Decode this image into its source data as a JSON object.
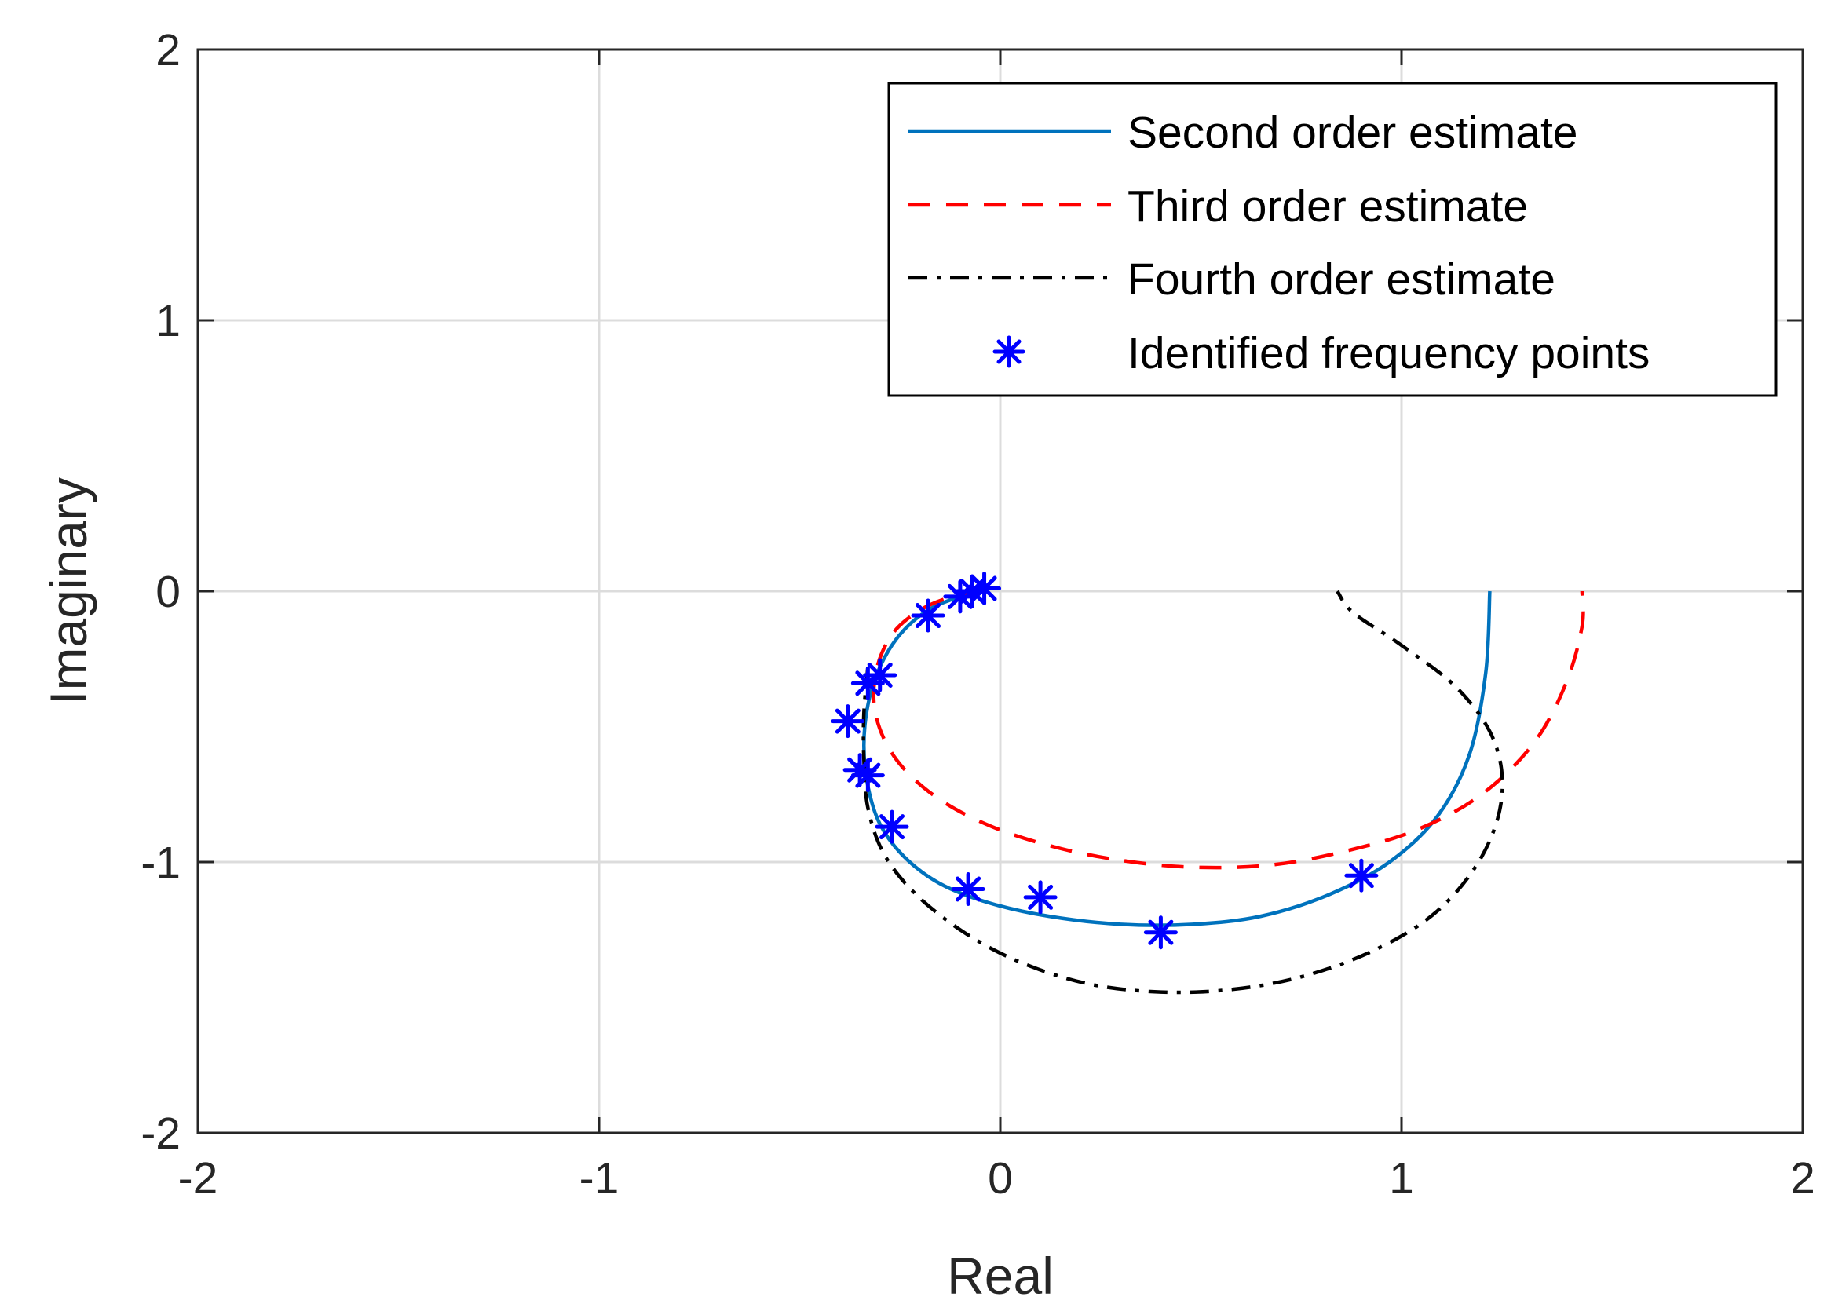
{
  "chart_data": {
    "type": "line",
    "title": "",
    "xlabel": "Real",
    "ylabel": "Imaginary",
    "xlim": [
      -2,
      2
    ],
    "ylim": [
      -2,
      2
    ],
    "grid": true,
    "legend_position": "top-right",
    "x_ticks": [
      -2,
      -1,
      0,
      1,
      2
    ],
    "y_ticks": [
      -2,
      -1,
      0,
      1,
      2
    ],
    "x_tick_labels": [
      "-2",
      "-1",
      "0",
      "1",
      "2"
    ],
    "y_tick_labels": [
      "-2",
      "-1",
      "0",
      "1",
      "2"
    ],
    "series": [
      {
        "name": "Second order estimate",
        "style": "solid",
        "color": "#0072BD",
        "points": [
          [
            -0.04,
            0.0
          ],
          [
            -0.1,
            -0.02
          ],
          [
            -0.18,
            -0.07
          ],
          [
            -0.25,
            -0.16
          ],
          [
            -0.3,
            -0.28
          ],
          [
            -0.33,
            -0.42
          ],
          [
            -0.34,
            -0.57
          ],
          [
            -0.33,
            -0.72
          ],
          [
            -0.3,
            -0.86
          ],
          [
            -0.24,
            -0.98
          ],
          [
            -0.15,
            -1.08
          ],
          [
            -0.03,
            -1.15
          ],
          [
            0.12,
            -1.2
          ],
          [
            0.3,
            -1.23
          ],
          [
            0.48,
            -1.23
          ],
          [
            0.65,
            -1.2
          ],
          [
            0.82,
            -1.12
          ],
          [
            0.97,
            -1.0
          ],
          [
            1.09,
            -0.83
          ],
          [
            1.17,
            -0.6
          ],
          [
            1.21,
            -0.3
          ],
          [
            1.22,
            0.0
          ]
        ]
      },
      {
        "name": "Third order estimate",
        "style": "dashed",
        "color": "#FF0000",
        "points": [
          [
            -0.05,
            0.0
          ],
          [
            -0.12,
            -0.02
          ],
          [
            -0.2,
            -0.07
          ],
          [
            -0.27,
            -0.16
          ],
          [
            -0.31,
            -0.3
          ],
          [
            -0.31,
            -0.46
          ],
          [
            -0.26,
            -0.62
          ],
          [
            -0.16,
            -0.76
          ],
          [
            -0.02,
            -0.87
          ],
          [
            0.15,
            -0.95
          ],
          [
            0.33,
            -1.0
          ],
          [
            0.5,
            -1.02
          ],
          [
            0.68,
            -1.01
          ],
          [
            0.86,
            -0.96
          ],
          [
            1.04,
            -0.88
          ],
          [
            1.2,
            -0.75
          ],
          [
            1.33,
            -0.56
          ],
          [
            1.41,
            -0.34
          ],
          [
            1.45,
            -0.13
          ],
          [
            1.45,
            0.0
          ]
        ]
      },
      {
        "name": "Fourth order estimate",
        "style": "dashdot",
        "color": "#000000",
        "points": [
          [
            -0.33,
            -0.28
          ],
          [
            -0.34,
            -0.45
          ],
          [
            -0.34,
            -0.62
          ],
          [
            -0.33,
            -0.8
          ],
          [
            -0.29,
            -0.97
          ],
          [
            -0.21,
            -1.12
          ],
          [
            -0.09,
            -1.26
          ],
          [
            0.05,
            -1.37
          ],
          [
            0.22,
            -1.45
          ],
          [
            0.4,
            -1.48
          ],
          [
            0.58,
            -1.47
          ],
          [
            0.76,
            -1.42
          ],
          [
            0.94,
            -1.32
          ],
          [
            1.09,
            -1.18
          ],
          [
            1.2,
            -0.98
          ],
          [
            1.25,
            -0.76
          ],
          [
            1.23,
            -0.55
          ],
          [
            1.14,
            -0.36
          ],
          [
            1.0,
            -0.2
          ],
          [
            0.88,
            -0.08
          ],
          [
            0.84,
            0.0
          ]
        ]
      }
    ],
    "markers": {
      "name": "Identified frequency points",
      "symbol": "asterisk",
      "color": "#0000FF",
      "points": [
        [
          -0.04,
          0.01
        ],
        [
          -0.07,
          0.0
        ],
        [
          -0.1,
          -0.02
        ],
        [
          -0.18,
          -0.09
        ],
        [
          -0.3,
          -0.31
        ],
        [
          -0.33,
          -0.34
        ],
        [
          -0.38,
          -0.48
        ],
        [
          -0.35,
          -0.66
        ],
        [
          -0.33,
          -0.68
        ],
        [
          -0.27,
          -0.87
        ],
        [
          -0.08,
          -1.1
        ],
        [
          0.1,
          -1.13
        ],
        [
          0.4,
          -1.26
        ],
        [
          0.9,
          -1.05
        ]
      ]
    }
  }
}
